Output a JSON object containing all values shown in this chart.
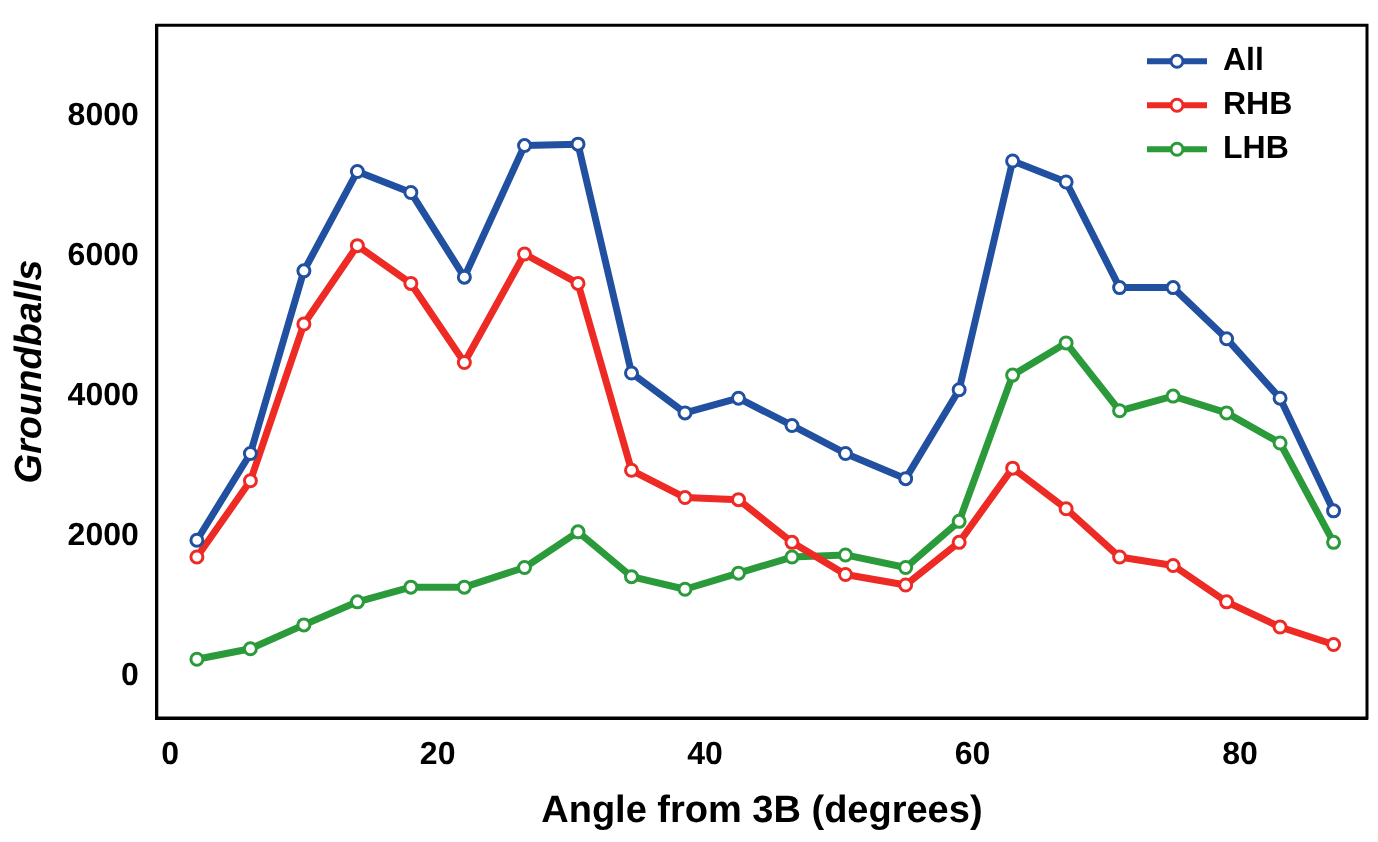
{
  "chart_data": {
    "type": "line",
    "xlabel": "Angle from 3B (degrees)",
    "ylabel": "Groundballs",
    "x": [
      2,
      6,
      10,
      14,
      18,
      22,
      26.5,
      30.5,
      34.5,
      38.5,
      42.5,
      46.5,
      50.5,
      55,
      59,
      63,
      67,
      71,
      75,
      79,
      83,
      87
    ],
    "series": [
      {
        "name": "All",
        "color": "#2250a0",
        "values": [
          1940,
          3180,
          5790,
          7210,
          6910,
          5700,
          7580,
          7600,
          4330,
          3760,
          3970,
          3580,
          3180,
          2820,
          4090,
          7360,
          7060,
          5550,
          5550,
          4820,
          3970,
          2360
        ]
      },
      {
        "name": "RHB",
        "color": "#ee2a24",
        "values": [
          1700,
          2790,
          5030,
          6150,
          5610,
          4480,
          6030,
          5610,
          2940,
          2550,
          2520,
          1910,
          1450,
          1300,
          1910,
          2970,
          2390,
          1700,
          1580,
          1060,
          700,
          450
        ]
      },
      {
        "name": "LHB",
        "color": "#2a9a3a",
        "values": [
          240,
          390,
          730,
          1060,
          1270,
          1270,
          1550,
          2060,
          1420,
          1240,
          1470,
          1700,
          1730,
          1550,
          2210,
          4300,
          4760,
          3790,
          4000,
          3760,
          3330,
          1910
        ]
      }
    ],
    "xlim": [
      -1,
      89.5
    ],
    "xticks": [
      0,
      20,
      40,
      60,
      80
    ],
    "ylim": [
      -600,
      9300
    ],
    "yticks": [
      0,
      2000,
      4000,
      6000,
      8000
    ],
    "grid": false,
    "legend": "top right",
    "marker": "circle",
    "line_style": "solid"
  }
}
